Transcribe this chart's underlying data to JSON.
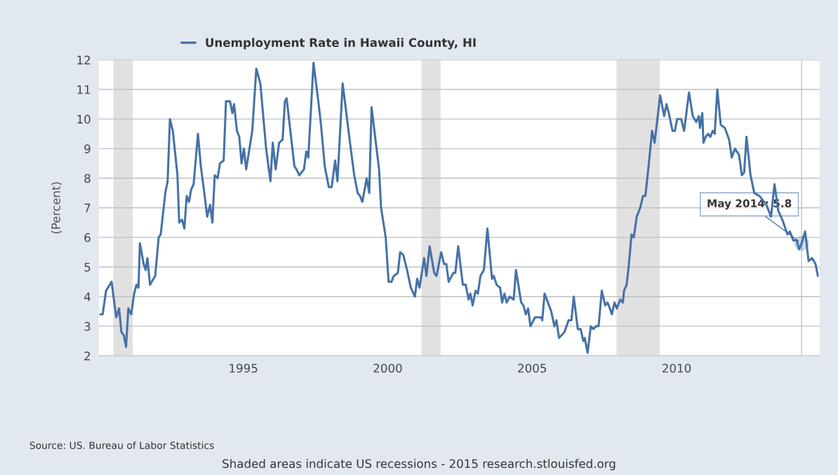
{
  "chart_data": {
    "type": "line",
    "ylabel": "(Percent)",
    "xlim": [
      1990,
      2014.95
    ],
    "xticks": [
      1995,
      2000,
      2005,
      2010
    ],
    "ylim": [
      2,
      12
    ],
    "yticks": [
      2,
      3,
      4,
      5,
      6,
      7,
      8,
      9,
      10,
      11,
      12
    ],
    "grid": "y",
    "legend": "top left",
    "marker": "none",
    "line_style": "solid",
    "series": [
      {
        "name": "Unemployment Rate in Hawaii County, HI",
        "color": "#4572a7",
        "x": [
          1990.05,
          1990.13,
          1990.25,
          1990.44,
          1990.6,
          1990.7,
          1990.78,
          1990.86,
          1990.94,
          1991.02,
          1991.12,
          1991.22,
          1991.3,
          1991.37,
          1991.42,
          1991.55,
          1991.62,
          1991.68,
          1991.77,
          1991.95,
          1992.07,
          1992.14,
          1992.3,
          1992.38,
          1992.46,
          1992.56,
          1992.72,
          1992.78,
          1992.88,
          1992.96,
          1993.04,
          1993.12,
          1993.19,
          1993.28,
          1993.43,
          1993.53,
          1993.65,
          1993.75,
          1993.85,
          1993.93,
          1994.01,
          1994.11,
          1994.19,
          1994.32,
          1994.4,
          1994.54,
          1994.62,
          1994.68,
          1994.78,
          1994.86,
          1994.94,
          1995.02,
          1995.1,
          1995.31,
          1995.45,
          1995.59,
          1995.79,
          1995.94,
          1996.02,
          1996.12,
          1996.24,
          1996.36,
          1996.44,
          1996.5,
          1996.77,
          1996.84,
          1996.94,
          1997.1,
          1997.18,
          1997.25,
          1997.43,
          1997.61,
          1997.69,
          1997.82,
          1997.96,
          1998.06,
          1998.18,
          1998.26,
          1998.44,
          1998.72,
          1998.84,
          1998.96,
          1999.04,
          1999.12,
          1999.27,
          1999.36,
          1999.44,
          1999.7,
          1999.77,
          1999.93,
          2000.03,
          2000.13,
          2000.21,
          2000.35,
          2000.43,
          2000.54,
          2000.67,
          2000.8,
          2000.94,
          2001.02,
          2001.1,
          2001.26,
          2001.34,
          2001.45,
          2001.61,
          2001.69,
          2001.85,
          2001.95,
          2002.03,
          2002.11,
          2002.27,
          2002.34,
          2002.44,
          2002.6,
          2002.7,
          2002.8,
          2002.86,
          2002.94,
          2003.04,
          2003.12,
          2003.21,
          2003.33,
          2003.45,
          2003.61,
          2003.67,
          2003.77,
          2003.89,
          2003.96,
          2004.04,
          2004.12,
          2004.22,
          2004.36,
          2004.44,
          2004.62,
          2004.7,
          2004.78,
          2004.86,
          2004.94,
          2005.1,
          2005.31,
          2005.35,
          2005.43,
          2005.66,
          2005.77,
          2005.84,
          2005.93,
          2006.12,
          2006.26,
          2006.36,
          2006.44,
          2006.58,
          2006.68,
          2006.77,
          2006.82,
          2006.92,
          2007.03,
          2007.12,
          2007.21,
          2007.3,
          2007.41,
          2007.53,
          2007.61,
          2007.69,
          2007.76,
          2007.85,
          2007.93,
          2008.05,
          2008.14,
          2008.18,
          2008.27,
          2008.34,
          2008.44,
          2008.52,
          2008.62,
          2008.74,
          2008.84,
          2008.92,
          2009.03,
          2009.15,
          2009.24,
          2009.43,
          2009.57,
          2009.65,
          2009.73,
          2009.86,
          2009.94,
          2010.02,
          2010.16,
          2010.26,
          2010.43,
          2010.56,
          2010.68,
          2010.77,
          2010.81,
          2010.89,
          2010.93,
          2011.01,
          2011.09,
          2011.17,
          2011.25,
          2011.32,
          2011.41,
          2011.53,
          2011.67,
          2011.82,
          2011.91,
          2012.02,
          2012.16,
          2012.26,
          2012.34,
          2012.42,
          2012.56,
          2012.69,
          2012.87,
          2013.11,
          2013.27,
          2013.39,
          2013.52,
          2013.66,
          2013.84,
          2013.92,
          2014.04,
          2014.16,
          2014.24,
          2014.33,
          2014.45,
          2014.57,
          2014.69,
          2014.81,
          2014.89
        ],
        "values": [
          3.4,
          3.4,
          4.2,
          4.5,
          3.3,
          3.6,
          2.8,
          2.7,
          2.3,
          3.6,
          3.4,
          4.1,
          4.4,
          4.3,
          5.8,
          5.1,
          4.9,
          5.3,
          4.4,
          4.7,
          6.0,
          6.1,
          7.5,
          7.9,
          10.0,
          9.6,
          8.1,
          6.5,
          6.6,
          6.3,
          7.4,
          7.2,
          7.6,
          7.8,
          9.5,
          8.4,
          7.5,
          6.7,
          7.1,
          6.5,
          8.1,
          8.0,
          8.5,
          8.6,
          10.6,
          10.6,
          10.2,
          10.5,
          9.6,
          9.4,
          8.5,
          9.0,
          8.3,
          9.6,
          11.7,
          11.2,
          9.0,
          7.9,
          9.2,
          8.3,
          9.2,
          9.3,
          10.6,
          10.7,
          8.4,
          8.3,
          8.1,
          8.3,
          8.9,
          8.7,
          11.9,
          10.5,
          9.8,
          8.4,
          7.7,
          7.7,
          8.6,
          7.9,
          11.2,
          9.0,
          8.1,
          7.5,
          7.4,
          7.2,
          8.0,
          7.5,
          10.4,
          8.3,
          7.0,
          6.0,
          4.5,
          4.5,
          4.7,
          4.8,
          5.5,
          5.4,
          4.9,
          4.3,
          4.0,
          4.6,
          4.3,
          5.3,
          4.7,
          5.7,
          4.8,
          4.7,
          5.5,
          5.1,
          5.1,
          4.5,
          4.8,
          4.8,
          5.7,
          4.4,
          4.4,
          3.9,
          4.1,
          3.7,
          4.2,
          4.1,
          4.7,
          4.9,
          6.3,
          4.6,
          4.7,
          4.4,
          4.3,
          3.8,
          4.1,
          3.8,
          4.0,
          3.9,
          4.9,
          3.8,
          3.7,
          3.4,
          3.6,
          3.0,
          3.3,
          3.3,
          3.2,
          4.1,
          3.5,
          3.0,
          3.2,
          2.6,
          2.8,
          3.2,
          3.2,
          4.0,
          2.9,
          2.9,
          2.5,
          2.6,
          2.1,
          3.0,
          2.9,
          3.0,
          3.0,
          4.2,
          3.7,
          3.8,
          3.6,
          3.4,
          3.8,
          3.6,
          3.9,
          3.8,
          4.2,
          4.4,
          5.0,
          6.1,
          6.0,
          6.7,
          7.0,
          7.4,
          7.4,
          8.4,
          9.6,
          9.2,
          10.8,
          10.1,
          10.5,
          10.2,
          9.6,
          9.6,
          10.0,
          10.0,
          9.6,
          10.9,
          10.1,
          9.9,
          10.1,
          9.7,
          10.2,
          9.2,
          9.4,
          9.5,
          9.4,
          9.6,
          9.5,
          11.0,
          9.8,
          9.7,
          9.3,
          8.7,
          9.0,
          8.8,
          8.1,
          8.2,
          9.4,
          8.1,
          7.5,
          7.4,
          7.1,
          6.7,
          7.8,
          6.9,
          6.6,
          6.1,
          6.2,
          5.9,
          5.9,
          5.6,
          5.8,
          6.2,
          5.2,
          5.3,
          5.1,
          4.7
        ]
      }
    ],
    "bands": [
      {
        "axis": "x",
        "from": 1990.5,
        "to": 1991.17,
        "color": "#e1e1e1"
      },
      {
        "axis": "x",
        "from": 2001.17,
        "to": 2001.83,
        "color": "#e1e1e1"
      },
      {
        "axis": "x",
        "from": 2007.92,
        "to": 2009.42,
        "color": "#e1e1e1"
      }
    ],
    "ref_lines": [
      {
        "axis": "x",
        "value": 2014.33,
        "color": "#c0c0c0",
        "line_style": "solid"
      }
    ],
    "annotations": [
      {
        "text": "May 2014: 5.8",
        "x": 2014.33,
        "y": 5.8
      },
      "Source: US. Bureau of Labor Statistics",
      "Shaded areas indicate US recessions - 2015 research.stlouisfed.org"
    ]
  }
}
